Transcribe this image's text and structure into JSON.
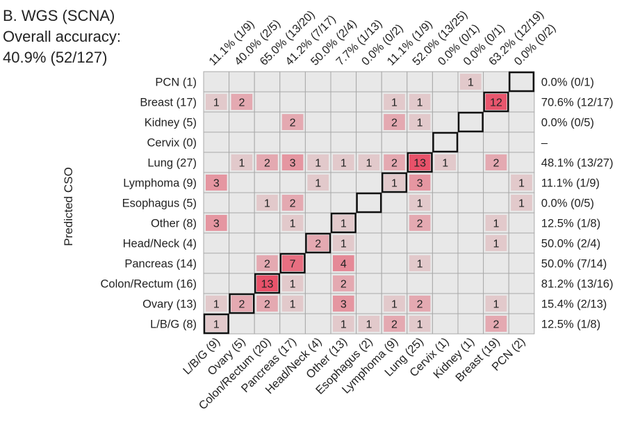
{
  "panel": {
    "title": "B. WGS (SCNA)",
    "subtitle": "Overall accuracy:",
    "accuracy": "40.9% (52/127)"
  },
  "chart_data": {
    "type": "heatmap",
    "ylabel": "Predicted CSO",
    "rows": [
      "PCN (1)",
      "Breast (17)",
      "Kidney (5)",
      "Cervix (0)",
      "Lung (27)",
      "Lymphoma (9)",
      "Esophagus (5)",
      "Other (8)",
      "Head/Neck (4)",
      "Pancreas (14)",
      "Colon/Rectum (16)",
      "Ovary (13)",
      "L/B/G (8)"
    ],
    "columns": [
      "L/B/G (9)",
      "Ovary (5)",
      "Colon/Rectum (20)",
      "Pancreas (17)",
      "Head/Neck (4)",
      "Other (13)",
      "Esophagus (2)",
      "Lymphoma (9)",
      "Lung (25)",
      "Cervix (1)",
      "Kidney (1)",
      "Breast (19)",
      "PCN (2)"
    ],
    "column_accuracy": [
      "11.1% (1/9)",
      "40.0% (2/5)",
      "65.0% (13/20)",
      "41.2% (7/17)",
      "50.0% (2/4)",
      "7.7% (1/13)",
      "0.0% (0/2)",
      "11.1% (1/9)",
      "52.0% (13/25)",
      "0.0% (0/1)",
      "0.0% (0/1)",
      "63.2% (12/19)",
      "0.0% (0/2)"
    ],
    "row_accuracy": [
      "0.0% (0/1)",
      "70.6% (12/17)",
      "0.0% (0/5)",
      "–",
      "48.1% (13/27)",
      "11.1% (1/9)",
      "0.0% (0/5)",
      "12.5% (1/8)",
      "50.0% (2/4)",
      "50.0% (7/14)",
      "81.2% (13/16)",
      "15.4% (2/13)",
      "12.5% (1/8)"
    ],
    "values": [
      [
        0,
        0,
        0,
        0,
        0,
        0,
        0,
        0,
        0,
        0,
        1,
        0,
        0
      ],
      [
        1,
        2,
        0,
        0,
        0,
        0,
        0,
        1,
        1,
        0,
        0,
        12,
        0
      ],
      [
        0,
        0,
        0,
        2,
        0,
        0,
        0,
        2,
        1,
        0,
        0,
        0,
        0
      ],
      [
        0,
        0,
        0,
        0,
        0,
        0,
        0,
        0,
        0,
        0,
        0,
        0,
        0
      ],
      [
        0,
        1,
        2,
        3,
        1,
        1,
        1,
        2,
        13,
        1,
        0,
        2,
        0
      ],
      [
        3,
        0,
        0,
        0,
        1,
        0,
        0,
        1,
        3,
        0,
        0,
        0,
        1
      ],
      [
        0,
        0,
        1,
        2,
        0,
        0,
        0,
        0,
        1,
        0,
        0,
        0,
        1
      ],
      [
        3,
        0,
        0,
        1,
        0,
        1,
        0,
        0,
        2,
        0,
        0,
        1,
        0
      ],
      [
        0,
        0,
        0,
        0,
        2,
        1,
        0,
        0,
        0,
        0,
        0,
        1,
        0
      ],
      [
        0,
        0,
        2,
        7,
        0,
        4,
        0,
        0,
        1,
        0,
        0,
        0,
        0
      ],
      [
        0,
        0,
        13,
        1,
        0,
        2,
        0,
        0,
        0,
        0,
        0,
        0,
        0
      ],
      [
        1,
        2,
        2,
        1,
        0,
        3,
        0,
        1,
        2,
        0,
        0,
        1,
        0
      ],
      [
        1,
        0,
        0,
        0,
        0,
        1,
        1,
        2,
        1,
        0,
        0,
        2,
        0
      ]
    ],
    "colors": {
      "empty": "#e8e8e8",
      "grid": "#a8a8a8",
      "diagonal_border": "#111111",
      "low": "#e2c9cb",
      "high": "#e8526a"
    }
  }
}
